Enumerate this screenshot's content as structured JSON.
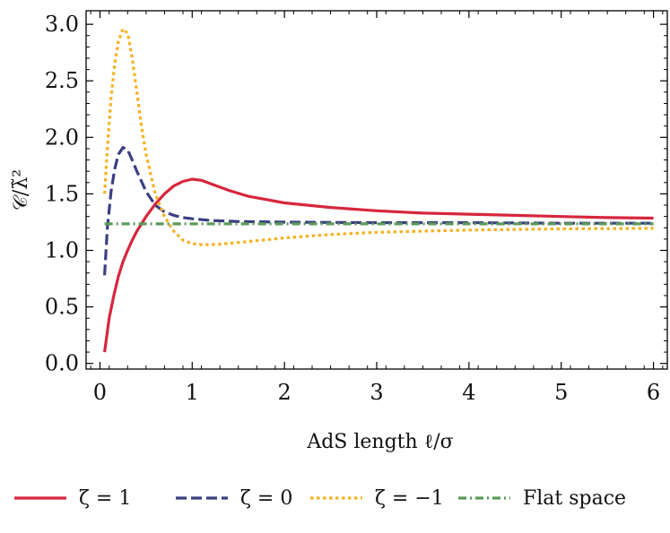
{
  "chart_data": {
    "type": "line",
    "title": "",
    "xlabel": "AdS length  ℓ/σ",
    "ylabel": "𝒞/λ̃²",
    "xlim": [
      -0.15,
      6.15
    ],
    "ylim": [
      -0.05,
      3.12
    ],
    "xticks": [
      0,
      1,
      2,
      3,
      4,
      5,
      6
    ],
    "xtick_labels": [
      "0",
      "1",
      "2",
      "3",
      "4",
      "5",
      "6"
    ],
    "yticks": [
      0.0,
      0.5,
      1.0,
      1.5,
      2.0,
      2.5,
      3.0
    ],
    "ytick_labels": [
      "0.0",
      "0.5",
      "1.0",
      "1.5",
      "2.0",
      "2.5",
      "3.0"
    ],
    "grid": false,
    "legend_position": "bottom",
    "series": [
      {
        "name": "ζ = 1",
        "color": "#d7263d",
        "style": "solid",
        "x": [
          0.05,
          0.1,
          0.15,
          0.2,
          0.25,
          0.3,
          0.35,
          0.4,
          0.5,
          0.6,
          0.7,
          0.8,
          0.9,
          1.0,
          1.1,
          1.2,
          1.4,
          1.6,
          1.8,
          2.0,
          2.5,
          3.0,
          3.5,
          4.0,
          4.5,
          5.0,
          5.5,
          6.0
        ],
        "y": [
          0.1,
          0.4,
          0.6,
          0.77,
          0.9,
          1.0,
          1.09,
          1.17,
          1.3,
          1.41,
          1.5,
          1.57,
          1.61,
          1.63,
          1.62,
          1.59,
          1.53,
          1.48,
          1.45,
          1.42,
          1.38,
          1.35,
          1.33,
          1.32,
          1.31,
          1.3,
          1.29,
          1.285
        ]
      },
      {
        "name": "ζ = 0",
        "color": "#3b3f82",
        "style": "dashed",
        "x": [
          0.05,
          0.08,
          0.12,
          0.16,
          0.2,
          0.25,
          0.3,
          0.35,
          0.4,
          0.5,
          0.6,
          0.7,
          0.8,
          0.9,
          1.0,
          1.2,
          1.5,
          2.0,
          3.0,
          4.0,
          5.0,
          6.0
        ],
        "y": [
          0.78,
          1.2,
          1.52,
          1.72,
          1.85,
          1.91,
          1.89,
          1.8,
          1.7,
          1.52,
          1.4,
          1.34,
          1.31,
          1.29,
          1.28,
          1.265,
          1.255,
          1.25,
          1.245,
          1.245,
          1.24,
          1.24
        ]
      },
      {
        "name": "ζ = −1",
        "color": "#f4b223",
        "style": "dotted",
        "x": [
          0.05,
          0.08,
          0.12,
          0.16,
          0.2,
          0.25,
          0.3,
          0.35,
          0.4,
          0.45,
          0.5,
          0.6,
          0.7,
          0.8,
          0.9,
          1.0,
          1.1,
          1.2,
          1.3,
          1.5,
          2.0,
          2.5,
          3.0,
          4.0,
          5.0,
          6.0
        ],
        "y": [
          1.5,
          1.9,
          2.35,
          2.65,
          2.85,
          2.96,
          2.92,
          2.7,
          2.4,
          2.1,
          1.85,
          1.5,
          1.3,
          1.17,
          1.09,
          1.06,
          1.05,
          1.05,
          1.055,
          1.07,
          1.11,
          1.14,
          1.16,
          1.18,
          1.19,
          1.195
        ]
      },
      {
        "name": "Flat space",
        "color": "#5b9a59",
        "style": "dashdot",
        "x": [
          0.05,
          6.0
        ],
        "y": [
          1.235,
          1.235
        ]
      }
    ]
  }
}
